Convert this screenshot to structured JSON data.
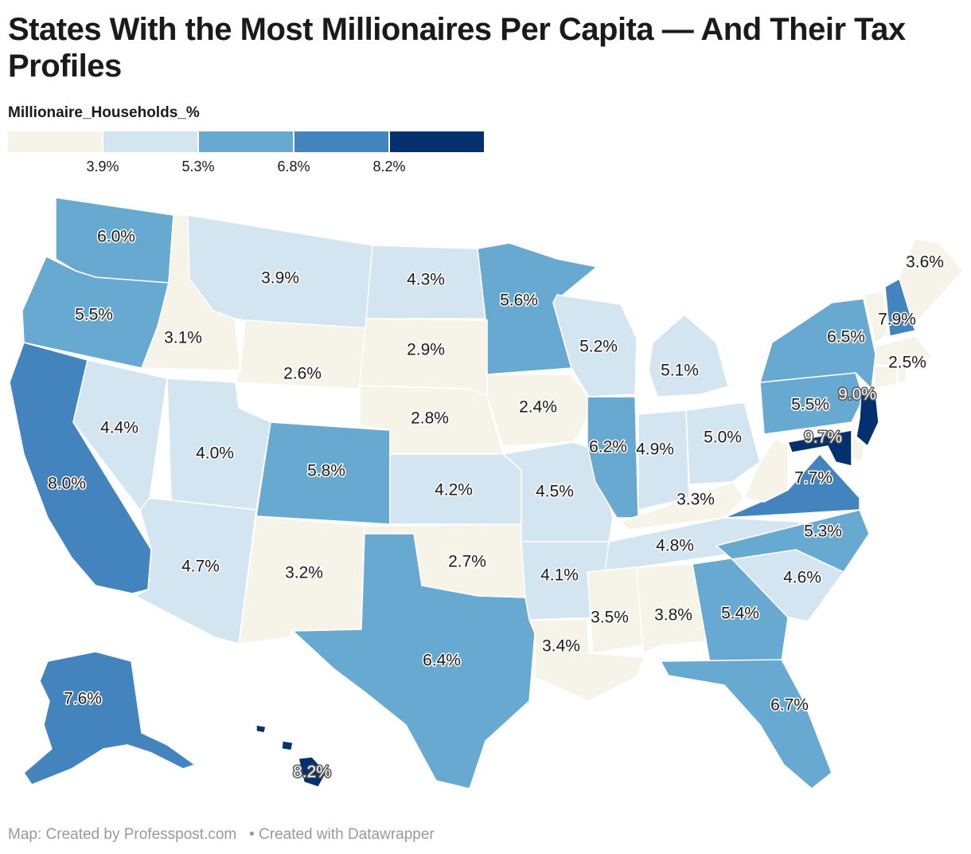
{
  "title": "States With the Most Millionaires Per Capita — And Their Tax Profiles",
  "legend": {
    "title": "Millionaire_Households_%",
    "colors": [
      "#f6f4e8",
      "#d3e5f1",
      "#68a9d1",
      "#4383be",
      "#04306d"
    ],
    "ticks": [
      "3.9%",
      "5.3%",
      "6.8%",
      "8.2%"
    ]
  },
  "chart_data": {
    "type": "choropleth",
    "value_field": "Millionaire_Households_%",
    "unit": "%",
    "breaks": [
      3.9,
      5.3,
      6.8,
      8.2
    ],
    "states": [
      {
        "state": "WA",
        "value": 6.0,
        "label": "6.0%"
      },
      {
        "state": "OR",
        "value": 5.5,
        "label": "5.5%"
      },
      {
        "state": "CA",
        "value": 8.0,
        "label": "8.0%"
      },
      {
        "state": "NV",
        "value": 4.4,
        "label": "4.4%"
      },
      {
        "state": "ID",
        "value": 3.1,
        "label": "3.1%"
      },
      {
        "state": "MT",
        "value": 3.9,
        "label": "3.9%"
      },
      {
        "state": "WY",
        "value": 2.6,
        "label": "2.6%"
      },
      {
        "state": "UT",
        "value": 4.0,
        "label": "4.0%"
      },
      {
        "state": "AZ",
        "value": 4.7,
        "label": "4.7%"
      },
      {
        "state": "CO",
        "value": 5.8,
        "label": "5.8%"
      },
      {
        "state": "NM",
        "value": 3.2,
        "label": "3.2%"
      },
      {
        "state": "ND",
        "value": 4.3,
        "label": "4.3%"
      },
      {
        "state": "SD",
        "value": 2.9,
        "label": "2.9%"
      },
      {
        "state": "NE",
        "value": 2.8,
        "label": "2.8%"
      },
      {
        "state": "KS",
        "value": 4.2,
        "label": "4.2%"
      },
      {
        "state": "OK",
        "value": 2.7,
        "label": "2.7%"
      },
      {
        "state": "TX",
        "value": 6.4,
        "label": "6.4%"
      },
      {
        "state": "MN",
        "value": 5.6,
        "label": "5.6%"
      },
      {
        "state": "IA",
        "value": 2.4,
        "label": "2.4%"
      },
      {
        "state": "MO",
        "value": 4.5,
        "label": "4.5%"
      },
      {
        "state": "AR",
        "value": 4.1,
        "label": "4.1%"
      },
      {
        "state": "LA",
        "value": 3.4,
        "label": "3.4%"
      },
      {
        "state": "WI",
        "value": 5.2,
        "label": "5.2%"
      },
      {
        "state": "IL",
        "value": 6.2,
        "label": "6.2%"
      },
      {
        "state": "MI",
        "value": 5.1,
        "label": "5.1%"
      },
      {
        "state": "IN",
        "value": 4.9,
        "label": "4.9%"
      },
      {
        "state": "OH",
        "value": 5.0,
        "label": "5.0%"
      },
      {
        "state": "KY",
        "value": 3.3,
        "label": "3.3%"
      },
      {
        "state": "TN",
        "value": 4.8,
        "label": "4.8%"
      },
      {
        "state": "MS",
        "value": 3.5,
        "label": "3.5%"
      },
      {
        "state": "AL",
        "value": 3.8,
        "label": "3.8%"
      },
      {
        "state": "GA",
        "value": 5.4,
        "label": "5.4%"
      },
      {
        "state": "FL",
        "value": 6.7,
        "label": "6.7%"
      },
      {
        "state": "SC",
        "value": 4.6,
        "label": "4.6%"
      },
      {
        "state": "NC",
        "value": 5.3,
        "label": "5.3%"
      },
      {
        "state": "VA",
        "value": 7.7,
        "label": "7.7%"
      },
      {
        "state": "WV",
        "value": null,
        "label": ""
      },
      {
        "state": "PA",
        "value": 5.5,
        "label": "5.5%"
      },
      {
        "state": "NY",
        "value": 6.5,
        "label": "6.5%"
      },
      {
        "state": "VT",
        "value": null,
        "label": ""
      },
      {
        "state": "NH",
        "value": 7.9,
        "label": "7.9%"
      },
      {
        "state": "ME",
        "value": 3.6,
        "label": "3.6%"
      },
      {
        "state": "MA",
        "value": 2.5,
        "label": "2.5%"
      },
      {
        "state": "CT",
        "value": null,
        "label": ""
      },
      {
        "state": "RI",
        "value": null,
        "label": ""
      },
      {
        "state": "NJ",
        "value": 9.0,
        "label": "9.0%"
      },
      {
        "state": "DE",
        "value": null,
        "label": ""
      },
      {
        "state": "MD",
        "value": 9.7,
        "label": "9.7%"
      },
      {
        "state": "AK",
        "value": 7.6,
        "label": "7.6%"
      },
      {
        "state": "HI",
        "value": 8.2,
        "label": "8.2%"
      }
    ]
  },
  "footer": {
    "source": "Map: Created by Professpost.com",
    "credit": "• Created with Datawrapper"
  }
}
